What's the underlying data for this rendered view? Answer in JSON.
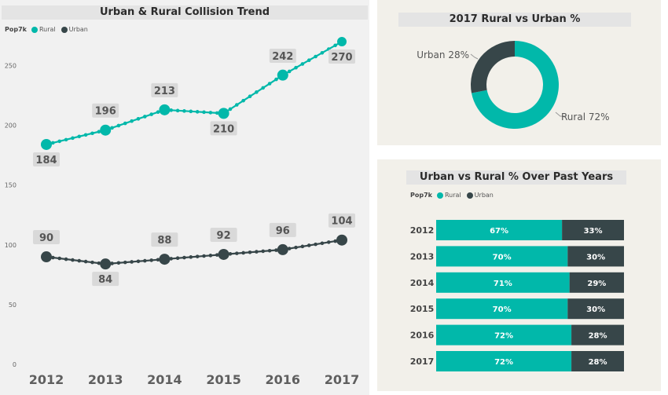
{
  "colors": {
    "rural": "#01b8aa",
    "urban": "#374649"
  },
  "legend": {
    "label": "Pop7k",
    "rural": "Rural",
    "urban": "Urban"
  },
  "chart_data": [
    {
      "type": "line",
      "title": "Urban & Rural Collision Trend",
      "categories": [
        "2012",
        "2013",
        "2014",
        "2015",
        "2016",
        "2017"
      ],
      "series": [
        {
          "name": "Rural",
          "values": [
            184,
            196,
            213,
            210,
            242,
            270
          ]
        },
        {
          "name": "Urban",
          "values": [
            90,
            84,
            88,
            92,
            96,
            104
          ]
        }
      ],
      "yticks": [
        "0",
        "50",
        "100",
        "150",
        "200",
        "250"
      ],
      "ylim": [
        0,
        270
      ]
    },
    {
      "type": "pie",
      "title": "2017 Rural vs Urban %",
      "slices": [
        {
          "name": "Rural",
          "value": 72,
          "label": "Rural 72%"
        },
        {
          "name": "Urban",
          "value": 28,
          "label": "Urban 28%"
        }
      ]
    },
    {
      "type": "bar",
      "title": "Urban vs Rural % Over Past Years",
      "categories": [
        "2012",
        "2013",
        "2014",
        "2015",
        "2016",
        "2017"
      ],
      "series": [
        {
          "name": "Rural",
          "values": [
            67,
            70,
            71,
            70,
            72,
            72
          ],
          "labels": [
            "67%",
            "70%",
            "71%",
            "70%",
            "72%",
            "72%"
          ]
        },
        {
          "name": "Urban",
          "values": [
            33,
            30,
            29,
            30,
            28,
            28
          ],
          "labels": [
            "33%",
            "30%",
            "29%",
            "30%",
            "28%",
            "28%"
          ]
        }
      ]
    }
  ]
}
